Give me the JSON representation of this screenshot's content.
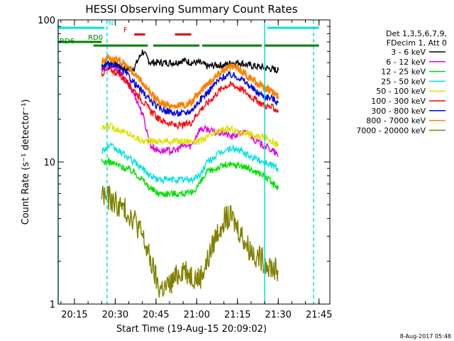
{
  "chart_data": {
    "type": "line",
    "title": "HESSI Observing Summary Count Rates",
    "xlabel": "Start Time (19-Aug-15 20:09:02)",
    "ylabel": "Count Rate (s⁻¹ detector⁻¹)",
    "yscale": "log",
    "xlim": [
      "20:09",
      "21:49"
    ],
    "ylim": [
      1,
      100
    ],
    "x_ticks": [
      "20:15",
      "20:30",
      "20:45",
      "21:00",
      "21:15",
      "21:30",
      "21:45"
    ],
    "y_ticks": [
      "1",
      "10",
      "100"
    ],
    "legend_header": [
      "Det 1,3,5,6,7,9,",
      "FDecim 1, Att 0"
    ],
    "legend_position": "right",
    "grid": false,
    "x": [
      "20:25",
      "20:28",
      "20:31",
      "20:34",
      "20:37",
      "20:40",
      "20:43",
      "20:46",
      "20:49",
      "20:52",
      "20:55",
      "20:58",
      "21:01",
      "21:04",
      "21:07",
      "21:10",
      "21:13",
      "21:16",
      "21:19",
      "21:22",
      "21:25",
      "21:28",
      "21:30"
    ],
    "series": [
      {
        "name": "3 - 6 keV",
        "color": "#000000",
        "values": [
          48,
          50,
          48,
          45,
          46,
          60,
          50,
          50,
          50,
          50,
          52,
          50,
          50,
          47,
          48,
          48,
          50,
          50,
          48,
          47,
          46,
          45,
          44
        ]
      },
      {
        "name": "6 - 12 keV",
        "color": "#e000e0",
        "values": [
          45,
          48,
          44,
          37,
          30,
          22,
          13,
          12,
          12,
          12,
          13,
          13,
          17,
          17,
          16,
          16,
          15,
          16,
          16,
          14,
          13,
          12,
          11
        ]
      },
      {
        "name": "12 - 25 keV",
        "color": "#00e000",
        "values": [
          10,
          10,
          9.5,
          9.0,
          8.5,
          7.5,
          6.5,
          6.0,
          6.0,
          6.0,
          6.0,
          6.0,
          7.0,
          8.5,
          9.0,
          9.5,
          9.5,
          9.5,
          9.0,
          8.5,
          8.0,
          7.0,
          6.5
        ]
      },
      {
        "name": "25 - 50 keV",
        "color": "#00e0e0",
        "values": [
          12,
          13,
          12,
          11,
          10,
          9.0,
          8.0,
          7.5,
          7.5,
          7.5,
          7.5,
          7.5,
          8.0,
          10,
          11,
          12,
          12.5,
          12,
          11,
          10.5,
          10,
          9.5,
          9.0
        ]
      },
      {
        "name": "50 - 100 keV",
        "color": "#e0e000",
        "values": [
          17,
          18,
          17,
          16,
          15,
          14,
          14,
          14,
          14,
          14,
          14,
          14,
          14,
          15,
          16,
          17,
          17,
          16,
          16,
          15,
          15,
          14,
          13
        ]
      },
      {
        "name": "100 - 300 keV",
        "color": "#ff0000",
        "values": [
          42,
          45,
          42,
          37,
          32,
          27,
          23,
          20,
          19,
          18,
          18,
          19,
          23,
          26,
          30,
          34,
          35,
          33,
          30,
          27,
          25,
          24,
          23
        ]
      },
      {
        "name": "300 - 800 keV",
        "color": "#0000e0",
        "values": [
          46,
          48,
          46,
          42,
          36,
          31,
          27,
          24,
          23,
          22,
          22,
          23,
          27,
          31,
          36,
          40,
          41,
          39,
          35,
          31,
          29,
          28,
          26
        ]
      },
      {
        "name": "800 - 7000 keV",
        "color": "#ff8000",
        "values": [
          52,
          54,
          52,
          48,
          42,
          36,
          30,
          27,
          25,
          25,
          25,
          26,
          31,
          36,
          40,
          45,
          47,
          45,
          40,
          36,
          33,
          31,
          29
        ]
      },
      {
        "name": "7000 - 20000 keV",
        "color": "#808000",
        "values": [
          6.0,
          5.5,
          5.0,
          4.5,
          4.0,
          3.0,
          2.0,
          1.3,
          1.3,
          1.5,
          1.8,
          1.6,
          1.5,
          2.0,
          3.0,
          4.0,
          4.0,
          3.2,
          2.5,
          2.2,
          2.0,
          1.8,
          1.7
        ]
      }
    ],
    "annotations": {
      "vertical_lines": [
        {
          "x": "20:09",
          "color": "#00e0e0",
          "style": "solid"
        },
        {
          "x": "20:27",
          "color": "#00e0e0",
          "style": "dashed"
        },
        {
          "x": "21:25",
          "color": "#00e0e0",
          "style": "solid"
        },
        {
          "x": "21:43",
          "color": "#00e0e0",
          "style": "dashed"
        }
      ],
      "bars": [
        {
          "label": "N",
          "color": "#00e0e0",
          "y": 88,
          "ranges": [
            [
              "20:09",
              "20:26"
            ],
            [
              "21:26",
              "21:45"
            ]
          ]
        },
        {
          "label": "RD0",
          "color": "#008000",
          "y": 70,
          "ranges": [
            [
              "20:09",
              "20:25"
            ]
          ]
        },
        {
          "label": "RD6",
          "color": "#008000",
          "y": 66,
          "ranges": [
            [
              "20:22",
              "20:42"
            ],
            [
              "20:44",
              "21:01"
            ],
            [
              "21:02",
              "21:24"
            ],
            [
              "21:25",
              "21:45"
            ]
          ]
        },
        {
          "label": "F",
          "color": "#e00000",
          "y": 79,
          "ranges": [
            [
              "20:37",
              "20:41"
            ],
            [
              "20:52",
              "20:58"
            ]
          ]
        }
      ]
    }
  },
  "footer_timestamp": "8-Aug-2017 05:48"
}
